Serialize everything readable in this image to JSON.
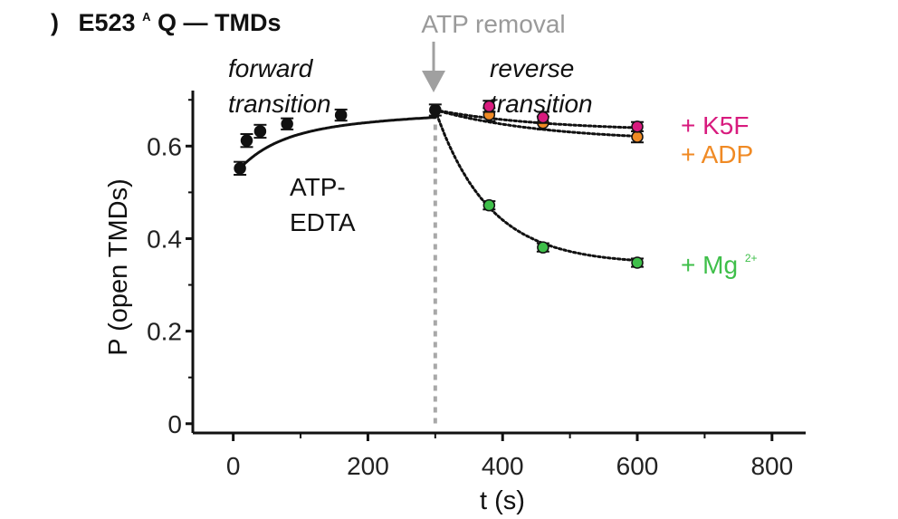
{
  "panel": {
    "letter": ")",
    "title_part1": "E523",
    "title_sup": "A",
    "title_part2": "Q — TMDs"
  },
  "annotations": {
    "forward_line1": "forward",
    "forward_line2": "transition",
    "reverse_line1": "reverse",
    "reverse_line2": "transition",
    "condition_line1": "ATP-",
    "condition_line2": "EDTA",
    "removal_label": "ATP removal"
  },
  "series_labels": {
    "k5f": "+ K5F",
    "adp": "+ ADP",
    "mg_base": "+ Mg",
    "mg_sup": "2+"
  },
  "colors": {
    "forward": "#111111",
    "k5f": "#d81b7e",
    "adp": "#f08a24",
    "mg": "#3fbf4a",
    "removal": "#9a9a9a",
    "axis": "#111111"
  },
  "chart_data": {
    "type": "scatter",
    "xlabel": "t (s)",
    "ylabel": "P (open TMDs)",
    "xlim": [
      -60,
      850
    ],
    "ylim": [
      -0.02,
      0.72
    ],
    "xticks": [
      0,
      200,
      400,
      600,
      800
    ],
    "yticks": [
      0,
      0.2,
      0.4,
      0.6
    ],
    "ytick_labels": [
      "0",
      "0.2",
      "0.4",
      "0.6"
    ],
    "grid": false,
    "vertical_marker_x": 300,
    "series": [
      {
        "key": "forward",
        "x": [
          10,
          20,
          40,
          80,
          160,
          300
        ],
        "y": [
          0.552,
          0.612,
          0.632,
          0.648,
          0.667,
          0.678
        ],
        "err": [
          0.014,
          0.014,
          0.014,
          0.012,
          0.012,
          0.012
        ],
        "fit": "solid"
      },
      {
        "key": "k5f",
        "x": [
          300,
          380,
          460,
          600
        ],
        "y": [
          0.678,
          0.686,
          0.662,
          0.642
        ],
        "err": [
          0.012,
          0.012,
          0.012,
          0.01
        ],
        "fit": "dotted"
      },
      {
        "key": "adp",
        "x": [
          300,
          380,
          460,
          600
        ],
        "y": [
          0.678,
          0.668,
          0.65,
          0.62
        ],
        "err": [
          0.012,
          0.014,
          0.014,
          0.012
        ],
        "fit": "dotted"
      },
      {
        "key": "mg",
        "x": [
          300,
          380,
          460,
          600
        ],
        "y": [
          0.678,
          0.472,
          0.381,
          0.348
        ],
        "err": [
          0.012,
          0.009,
          0.009,
          0.009
        ],
        "fit": "dotted"
      }
    ]
  }
}
